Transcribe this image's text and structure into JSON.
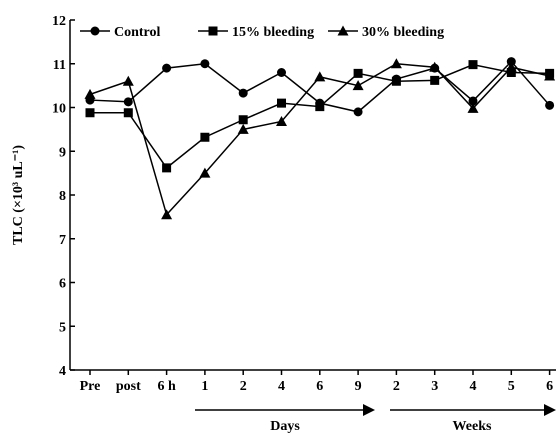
{
  "chart_data": {
    "type": "line",
    "ylabel": "TLC (×10³ uL⁻¹)",
    "categories": [
      "Pre",
      "post",
      "6 h",
      "1",
      "2",
      "4",
      "6",
      "9",
      "2",
      "3",
      "4",
      "5",
      "6"
    ],
    "x_groups": [
      "Days",
      "Weeks"
    ],
    "series": [
      {
        "name": "Control",
        "marker": "circle",
        "color": "#000000",
        "values": [
          10.17,
          10.13,
          10.9,
          11.0,
          10.33,
          10.8,
          10.1,
          9.9,
          10.65,
          10.9,
          10.15,
          11.05,
          10.05
        ]
      },
      {
        "name": "15% bleeding",
        "marker": "square",
        "color": "#000000",
        "values": [
          9.88,
          9.88,
          8.62,
          9.32,
          9.72,
          10.1,
          10.02,
          10.78,
          10.6,
          10.62,
          10.98,
          10.8,
          10.78
        ]
      },
      {
        "name": "30% bleeding",
        "marker": "triangle",
        "color": "#000000",
        "values": [
          10.3,
          10.6,
          7.55,
          8.5,
          9.5,
          9.68,
          10.7,
          10.5,
          11.0,
          10.92,
          9.98,
          10.92,
          10.72
        ]
      }
    ],
    "ylim": [
      4,
      12
    ],
    "yticks": [
      4,
      5,
      6,
      7,
      8,
      9,
      10,
      11,
      12
    ],
    "legend": "top"
  }
}
